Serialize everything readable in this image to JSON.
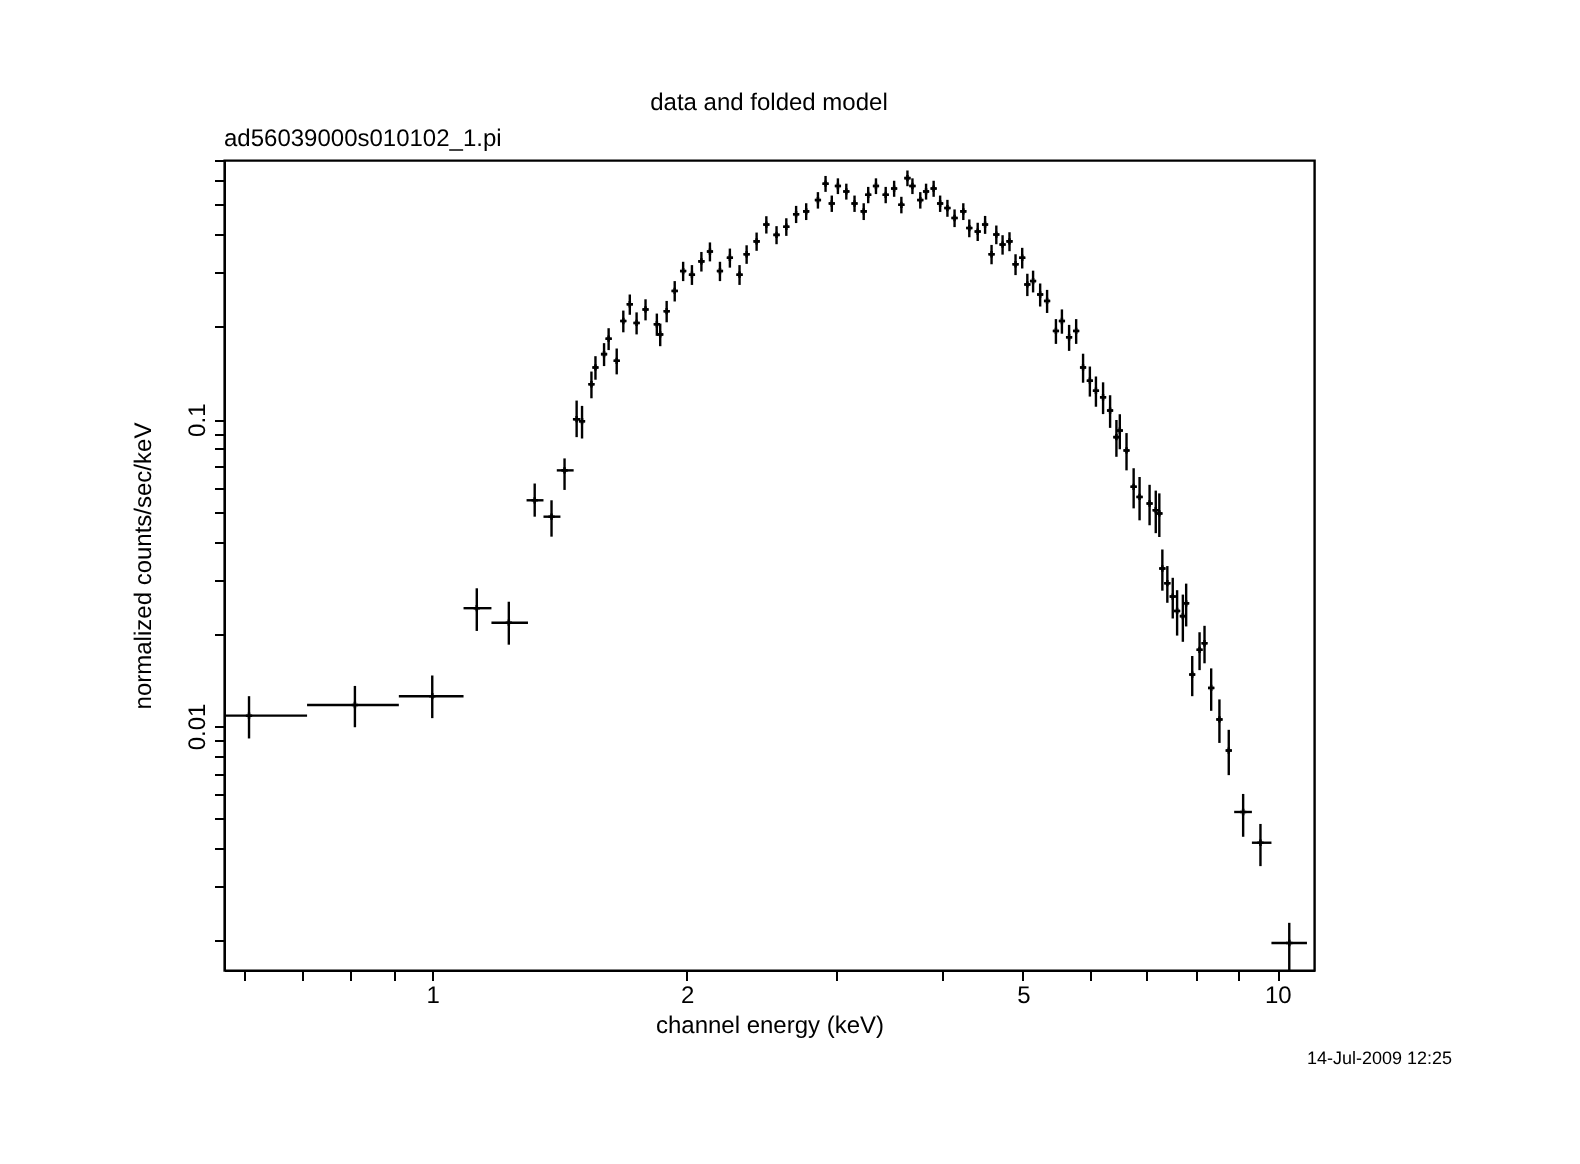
{
  "chart_data": {
    "type": "scatter",
    "title": "data and folded model",
    "subtitle": "ad56039000s010102_1.pi",
    "xlabel": "channel energy (keV)",
    "ylabel": "normalized counts/sec/keV",
    "annotations": [
      "14-Jul-2009 12:25"
    ],
    "log": "xy",
    "marker": "cross",
    "xlim": [
      0.567,
      11.05
    ],
    "ylim": [
      0.0016,
      0.7
    ],
    "xticks": [
      {
        "value": 0.6,
        "label": null
      },
      {
        "value": 0.7,
        "label": null
      },
      {
        "value": 0.8,
        "label": null
      },
      {
        "value": 0.9,
        "label": null
      },
      1,
      2,
      {
        "value": 3,
        "label": null
      },
      {
        "value": 4,
        "label": null
      },
      5,
      {
        "value": 6,
        "label": null
      },
      {
        "value": 7,
        "label": null
      },
      {
        "value": 8,
        "label": null
      },
      {
        "value": 9,
        "label": null
      },
      10
    ],
    "yticks": [
      {
        "value": 0.002,
        "label": null
      },
      {
        "value": 0.003,
        "label": null
      },
      {
        "value": 0.004,
        "label": null
      },
      {
        "value": 0.005,
        "label": null
      },
      {
        "value": 0.006,
        "label": null
      },
      {
        "value": 0.007,
        "label": null
      },
      {
        "value": 0.008,
        "label": null
      },
      {
        "value": 0.009,
        "label": null
      },
      0.01,
      {
        "value": 0.02,
        "label": null
      },
      {
        "value": 0.03,
        "label": null
      },
      {
        "value": 0.04,
        "label": null
      },
      {
        "value": 0.05,
        "label": null
      },
      {
        "value": 0.06,
        "label": null
      },
      {
        "value": 0.07,
        "label": null
      },
      {
        "value": 0.08,
        "label": null
      },
      {
        "value": 0.09,
        "label": null
      },
      0.1,
      {
        "value": 0.2,
        "label": null
      },
      {
        "value": 0.3,
        "label": null
      },
      {
        "value": 0.4,
        "label": null
      },
      {
        "value": 0.5,
        "label": null
      },
      {
        "value": 0.6,
        "label": null
      },
      {
        "value": 0.7,
        "label": null
      }
    ],
    "series": [
      {
        "color": "#000000",
        "x": [
          0.607,
          0.81,
          1.0,
          1.129,
          1.232,
          1.322,
          1.384,
          1.434,
          1.482,
          1.504,
          1.543,
          1.56,
          1.597,
          1.617,
          1.653,
          1.683,
          1.713,
          1.745,
          1.788,
          1.844,
          1.861,
          1.894,
          1.936,
          1.981,
          2.029,
          2.082,
          2.131,
          2.19,
          2.25,
          2.31,
          2.355,
          2.42,
          2.485,
          2.555,
          2.624,
          2.695,
          2.77,
          2.86,
          2.92,
          2.97,
          3.02,
          3.09,
          3.16,
          3.24,
          3.28,
          3.35,
          3.44,
          3.52,
          3.59,
          3.65,
          3.7,
          3.78,
          3.84,
          3.92,
          3.99,
          4.07,
          4.15,
          4.25,
          4.32,
          4.42,
          4.51,
          4.59,
          4.65,
          4.73,
          4.82,
          4.9,
          4.99,
          5.06,
          5.14,
          5.24,
          5.34,
          5.47,
          5.56,
          5.67,
          5.78,
          5.89,
          6.0,
          6.1,
          6.22,
          6.34,
          6.45,
          6.51,
          6.63,
          6.76,
          6.87,
          7.06,
          7.18,
          7.25,
          7.31,
          7.41,
          7.52,
          7.61,
          7.73,
          7.8,
          7.93,
          8.09,
          8.2,
          8.35,
          8.54,
          8.76,
          9.11,
          9.55,
          10.33
        ],
        "values": [
          0.0108,
          0.0117,
          0.0125,
          0.0242,
          0.0217,
          0.0544,
          0.0481,
          0.0681,
          0.1,
          0.0985,
          0.13,
          0.1475,
          0.163,
          0.183,
          0.155,
          0.209,
          0.237,
          0.206,
          0.228,
          0.204,
          0.189,
          0.225,
          0.262,
          0.304,
          0.296,
          0.327,
          0.352,
          0.304,
          0.336,
          0.296,
          0.345,
          0.38,
          0.431,
          0.399,
          0.424,
          0.466,
          0.476,
          0.518,
          0.586,
          0.505,
          0.576,
          0.553,
          0.505,
          0.476,
          0.539,
          0.576,
          0.539,
          0.565,
          0.5,
          0.611,
          0.576,
          0.518,
          0.553,
          0.565,
          0.505,
          0.488,
          0.453,
          0.476,
          0.42,
          0.409,
          0.431,
          0.345,
          0.4,
          0.371,
          0.38,
          0.32,
          0.336,
          0.275,
          0.282,
          0.255,
          0.243,
          0.194,
          0.209,
          0.185,
          0.194,
          0.1475,
          0.1335,
          0.1238,
          0.1179,
          0.1067,
          0.0874,
          0.0918,
          0.0791,
          0.0602,
          0.0558,
          0.0531,
          0.0505,
          0.0493,
          0.0326,
          0.0292,
          0.0264,
          0.0237,
          0.0228,
          0.0251,
          0.0147,
          0.0177,
          0.0186,
          0.0133,
          0.0105,
          0.00831,
          0.00524,
          0.00416,
          0.00196
        ],
        "errors": [
          [
            0.0091,
            0.0125
          ],
          [
            0.0099,
            0.0135
          ],
          [
            0.0106,
            0.0146
          ],
          [
            0.0204,
            0.0281
          ],
          [
            0.0184,
            0.0254
          ],
          [
            0.0481,
            0.0617
          ],
          [
            0.0414,
            0.0544
          ],
          [
            0.0588,
            0.0745
          ],
          [
            0.0874,
            0.115
          ],
          0.012,
          0.013,
          0.013,
          0.014,
          0.015,
          0.015,
          0.017,
          0.018,
          0.017,
          0.018,
          0.017,
          0.016,
          0.018,
          0.02,
          0.022,
          0.022,
          0.024,
          0.025,
          0.022,
          0.024,
          0.022,
          0.024,
          0.026,
          0.028,
          0.027,
          0.028,
          0.03,
          0.03,
          0.032,
          0.035,
          0.031,
          0.034,
          0.033,
          0.031,
          0.03,
          0.033,
          0.034,
          0.033,
          0.034,
          0.031,
          0.036,
          0.034,
          0.032,
          0.033,
          0.034,
          0.031,
          0.031,
          0.03,
          0.03,
          0.028,
          0.028,
          0.029,
          0.025,
          0.028,
          0.027,
          0.027,
          0.025,
          0.026,
          0.023,
          0.023,
          0.022,
          0.021,
          0.018,
          0.019,
          0.018,
          0.018,
          0.016,
          0.015,
          0.014,
          0.014,
          0.013,
          0.012,
          0.012,
          0.011,
          0.009,
          0.009,
          0.008,
          0.008,
          0.008,
          0.005,
          0.004,
          0.004,
          0.004,
          0.004,
          0.004,
          0.0022,
          0.0025,
          0.0026,
          0.0021,
          0.0017,
          0.0014,
          [
            0.00435,
            0.006
          ],
          [
            0.00349,
            0.00479
          ],
          [
            0.0016,
            0.00228
          ]
        ],
        "xerrors": [
          [
            0.567,
            0.711
          ],
          [
            0.711,
            0.913
          ],
          [
            0.913,
            1.089
          ],
          [
            1.089,
            1.175
          ],
          [
            1.175,
            1.298
          ],
          [
            1.293,
            1.354
          ],
          [
            1.354,
            1.418
          ],
          [
            1.404,
            1.47
          ],
          0.015,
          0.012,
          0.012,
          0.012,
          0.013,
          0.013,
          0.013,
          0.013,
          0.014,
          0.014,
          0.014,
          0.015,
          0.015,
          0.015,
          0.016,
          0.016,
          0.016,
          0.017,
          0.017,
          0.018,
          0.018,
          0.019,
          0.019,
          0.02,
          0.02,
          0.021,
          0.021,
          0.022,
          0.022,
          0.023,
          0.023,
          0.024,
          0.024,
          0.025,
          0.025,
          0.026,
          0.026,
          0.027,
          0.028,
          0.028,
          0.029,
          0.029,
          0.03,
          0.03,
          0.031,
          0.031,
          0.032,
          0.032,
          0.033,
          0.034,
          0.034,
          0.035,
          0.036,
          0.037,
          0.037,
          0.038,
          0.038,
          0.039,
          0.04,
          0.04,
          0.041,
          0.042,
          0.043,
          0.044,
          0.044,
          0.045,
          0.046,
          0.047,
          0.048,
          0.049,
          0.05,
          0.05,
          0.05,
          0.05,
          0.05,
          0.055,
          0.055,
          0.055,
          0.06,
          0.06,
          0.06,
          0.06,
          0.06,
          0.06,
          0.06,
          0.06,
          0.06,
          0.06,
          0.06,
          0.07,
          0.07,
          0.07,
          [
            8.89,
            9.33
          ],
          [
            9.33,
            9.84
          ],
          [
            9.84,
            10.84
          ]
        ]
      }
    ]
  }
}
